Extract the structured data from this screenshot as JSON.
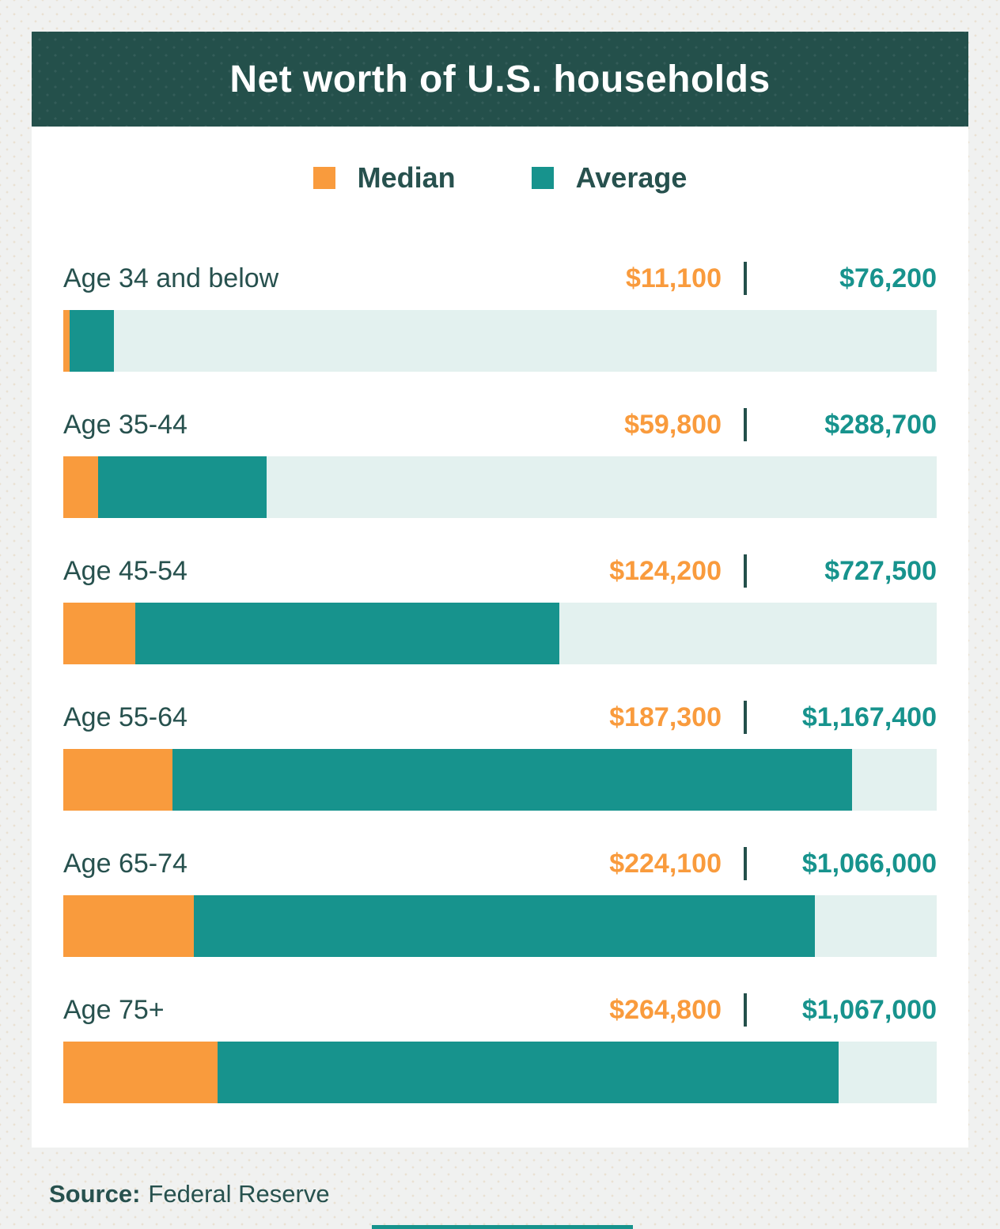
{
  "header": {
    "title": "Net worth of U.S. households"
  },
  "legend": {
    "items": [
      {
        "label": "Median",
        "color": "#F99B3D"
      },
      {
        "label": "Average",
        "color": "#17938D"
      }
    ]
  },
  "source": {
    "label": "Source:",
    "text": "Federal Reserve"
  },
  "colors": {
    "banner_background": "#24504B",
    "page_background": "#F0F1F0",
    "card_background": "#FFFFFF",
    "median_orange": "#F99B3D",
    "average_teal": "#17938D",
    "bar_track": "#E3F1EF",
    "text_dark_teal": "#27514E",
    "title_text": "#FFFFFF"
  },
  "chart_data": {
    "type": "bar",
    "orientation": "horizontal",
    "stacked": true,
    "title": "Net worth of U.S. households",
    "legend_position": "top",
    "grid": false,
    "axis_max": 1500000,
    "categories": [
      "Age 34 and below",
      "Age 35-44",
      "Age 45-54",
      "Age 55-64",
      "Age 65-74",
      "Age 75+"
    ],
    "series": [
      {
        "name": "Median",
        "color": "#F99B3D",
        "values": [
          11100,
          59800,
          124200,
          187300,
          224100,
          264800
        ],
        "labels": [
          "$11,100",
          "$59,800",
          "$124,200",
          "$187,300",
          "$224,100",
          "$264,800"
        ]
      },
      {
        "name": "Average",
        "color": "#17938D",
        "values": [
          76200,
          288700,
          727500,
          1167400,
          1066000,
          1067000
        ],
        "labels": [
          "$76,200",
          "$288,700",
          "$727,500",
          "$1,167,400",
          "$1,066,000",
          "$1,067,000"
        ]
      }
    ]
  }
}
